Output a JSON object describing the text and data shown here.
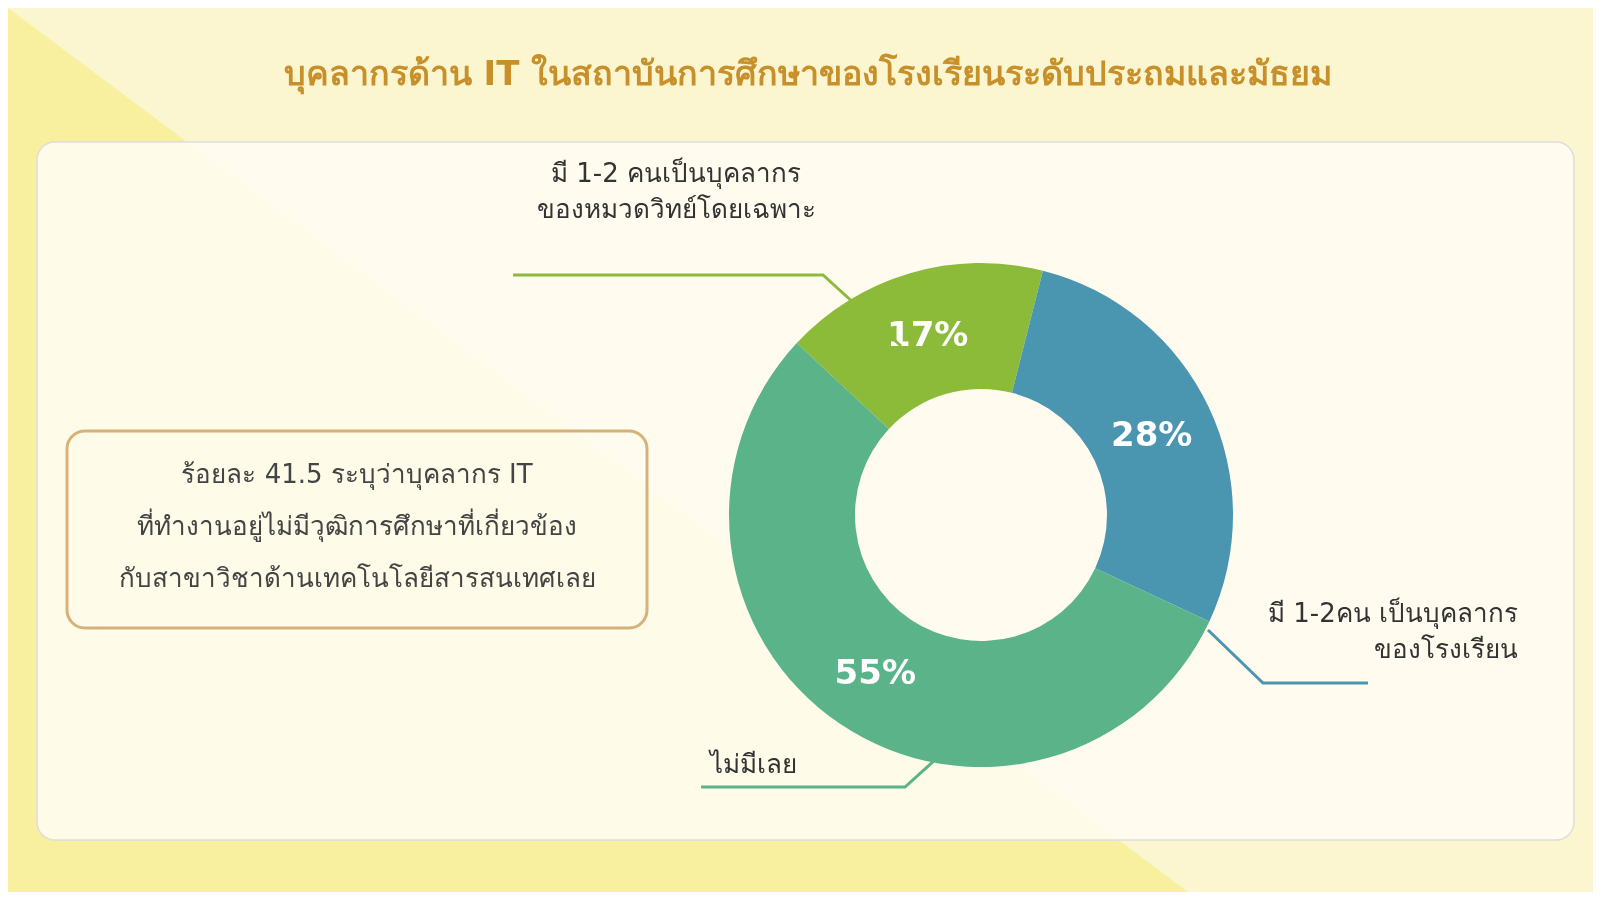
{
  "chart_data": {
    "type": "donut",
    "title": "บุคลากรด้าน IT ในสถาบันการศึกษาของโรงเรียนระดับประถมและมัธยม",
    "categories": [
      "มี 1-2 คนเป็นบุคลากร ของหมวดวิทย์โดยเฉพาะ",
      "มี 1-2คน เป็นบุคลากร ของโรงเรียน",
      "ไม่มีเลย"
    ],
    "values": [
      17,
      28,
      55
    ],
    "colors": [
      "#8cbb3a",
      "#4a95b0",
      "#5bb38a"
    ],
    "value_labels": [
      "17%",
      "28%",
      "55%"
    ],
    "annotations": [
      "ร้อยละ 41.5 ระบุว่าบุคลากร IT ที่ทำงานอยู่ไม่มีวุฒิการศึกษาที่เกี่ยวข้อง กับสาขาวิชาด้านเทคโนโลยีสารสนเทศเลย"
    ]
  }
}
